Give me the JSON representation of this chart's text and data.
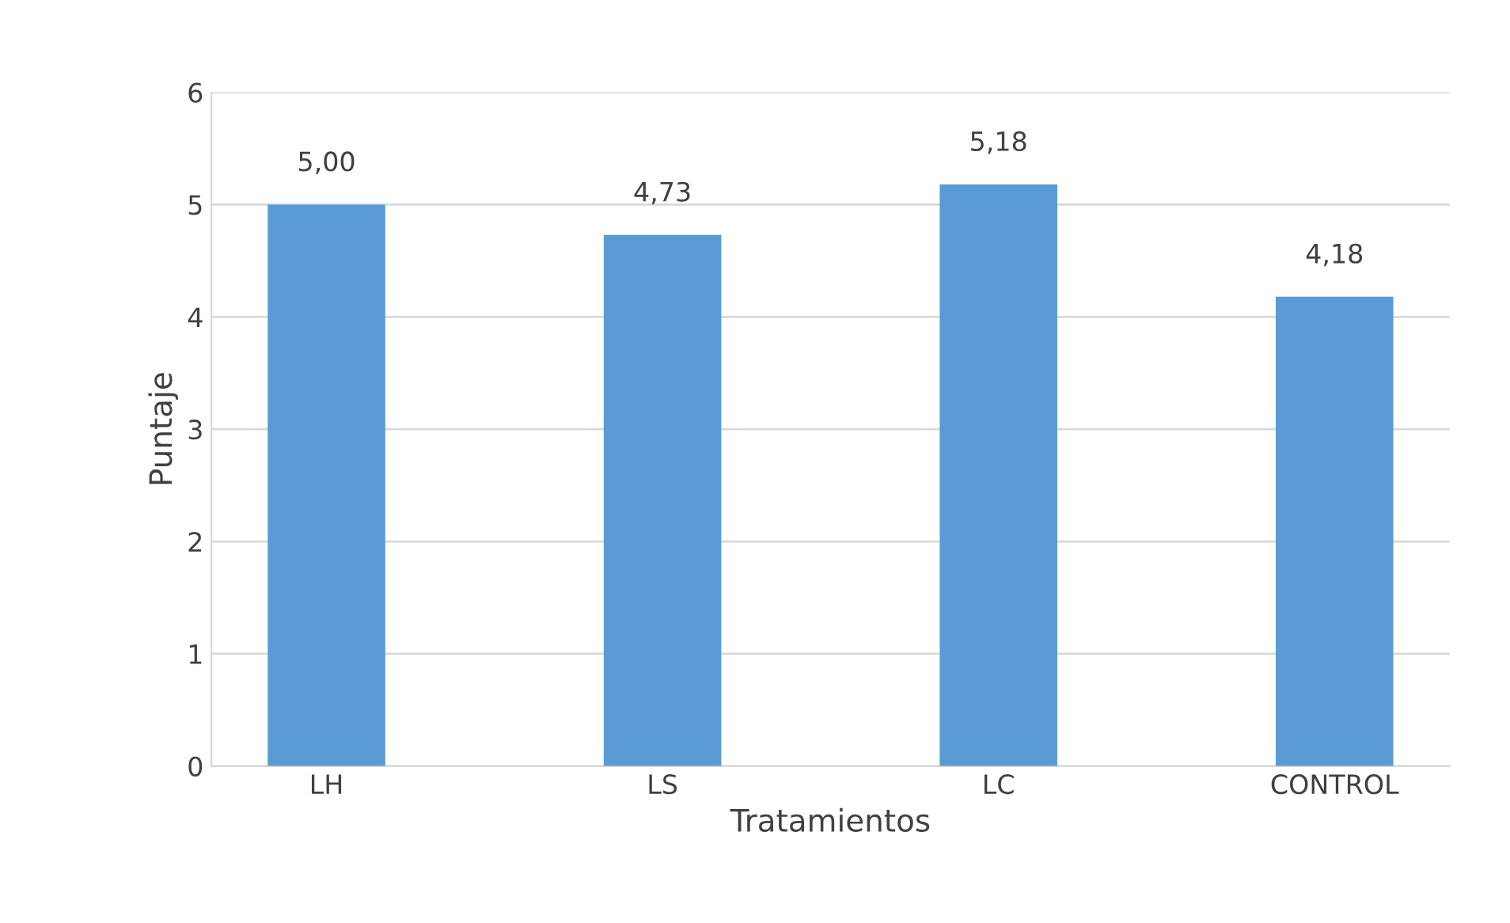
{
  "chart_data": {
    "type": "bar",
    "xlabel": "Tratamientos",
    "ylabel": "Puntaje",
    "categories": [
      "LH",
      "LS",
      "LC",
      "CONTROL"
    ],
    "values": [
      5.0,
      4.73,
      5.18,
      4.18
    ],
    "value_labels": [
      "5,00",
      "4,73",
      "5,18",
      "4,18"
    ],
    "color": "#5b9bd5",
    "ylim": [
      0,
      6
    ],
    "yticks": [
      0,
      1,
      2,
      3,
      4,
      5,
      6
    ],
    "grid": "y"
  }
}
